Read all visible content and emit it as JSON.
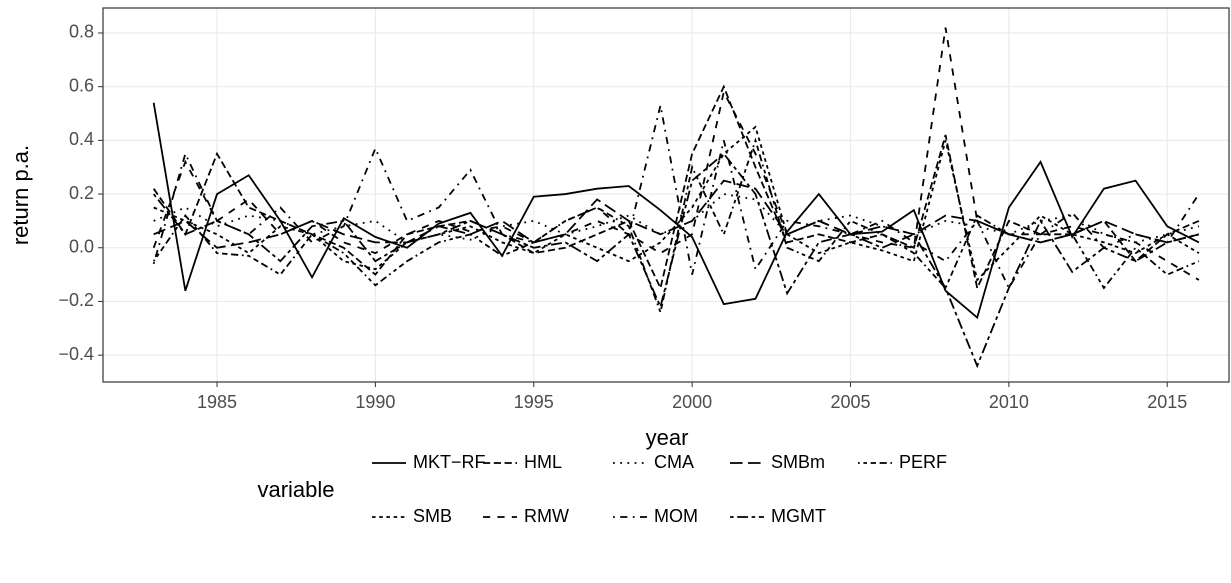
{
  "chart_data": {
    "type": "line",
    "x_label": "year",
    "y_label": "return p.a.",
    "legend_title": "variable",
    "x": [
      1983,
      1984,
      1985,
      1986,
      1987,
      1988,
      1989,
      1990,
      1991,
      1992,
      1993,
      1994,
      1995,
      1996,
      1997,
      1998,
      1999,
      2000,
      2001,
      2002,
      2003,
      2004,
      2005,
      2006,
      2007,
      2008,
      2009,
      2010,
      2011,
      2012,
      2013,
      2014,
      2015,
      2016
    ],
    "xlim": [
      1981.4,
      2016.95
    ],
    "xticks": [
      1985,
      1990,
      1995,
      2000,
      2005,
      2010,
      2015
    ],
    "ylim": [
      -0.5,
      0.893
    ],
    "yticks": [
      {
        "value": -0.4,
        "label": "−0.4"
      },
      {
        "value": -0.2,
        "label": "−0.2"
      },
      {
        "value": 0,
        "label": "0.0"
      },
      0.2,
      0.4,
      0.6,
      0.8
    ],
    "grid": true,
    "series": [
      {
        "name": "MKT−RF",
        "color": "#000000",
        "linetype": "solid",
        "values": [
          0.54,
          -0.16,
          0.2,
          0.27,
          0.1,
          -0.11,
          0.11,
          0.04,
          0.0,
          0.09,
          0.13,
          -0.03,
          0.19,
          0.2,
          0.22,
          0.23,
          0.14,
          0.04,
          -0.21,
          -0.19,
          0.06,
          0.2,
          0.05,
          0.06,
          0.14,
          -0.16,
          -0.26,
          0.15,
          0.32,
          0.04,
          0.22,
          0.25,
          0.08,
          0.02
        ]
      },
      {
        "name": "SMB",
        "color": "#000000",
        "linetype": "22",
        "values": [
          0.15,
          0.1,
          0.05,
          -0.02,
          0.08,
          0.05,
          -0.05,
          -0.08,
          0.02,
          0.05,
          0.08,
          0.02,
          -0.02,
          0.05,
          0.0,
          -0.05,
          0.02,
          0.15,
          0.35,
          0.45,
          0.05,
          -0.02,
          0.02,
          -0.01,
          -0.05,
          0.4,
          -0.12,
          0.0,
          0.12,
          0.05,
          0.02,
          -0.02,
          0.05,
          -0.02
        ]
      },
      {
        "name": "HML",
        "color": "#000000",
        "linetype": "42",
        "values": [
          0.22,
          0.05,
          0.35,
          0.15,
          0.1,
          0.05,
          0.0,
          -0.1,
          0.05,
          0.08,
          0.1,
          0.05,
          -0.02,
          0.0,
          0.05,
          0.1,
          -0.15,
          0.35,
          0.6,
          0.3,
          0.02,
          0.05,
          0.02,
          0.05,
          0.0,
          0.42,
          -0.15,
          0.1,
          0.05,
          0.05,
          0.1,
          -0.05,
          0.05,
          0.1
        ]
      },
      {
        "name": "RMW",
        "color": "#000000",
        "linetype": "44",
        "values": [
          0.0,
          0.32,
          0.1,
          0.18,
          0.05,
          0.1,
          0.02,
          -0.02,
          0.05,
          0.1,
          0.06,
          0.08,
          0.02,
          0.05,
          0.1,
          0.05,
          -0.02,
          0.05,
          0.58,
          0.35,
          0.05,
          0.1,
          0.05,
          0.02,
          0.0,
          0.82,
          0.1,
          0.05,
          0.05,
          0.08,
          0.05,
          0.02,
          -0.05,
          -0.12
        ]
      },
      {
        "name": "CMA",
        "color": "#000000",
        "linetype": "13",
        "values": [
          0.1,
          0.15,
          0.08,
          0.12,
          0.1,
          0.05,
          0.08,
          0.1,
          0.02,
          0.05,
          0.03,
          0.08,
          0.1,
          0.05,
          0.08,
          0.12,
          0.05,
          0.1,
          0.2,
          0.18,
          0.05,
          0.1,
          0.12,
          0.08,
          0.05,
          0.1,
          0.08,
          0.05,
          0.1,
          0.12,
          0.05,
          0.02,
          0.05,
          0.08
        ]
      },
      {
        "name": "MOM",
        "color": "#000000",
        "linetype": "1343",
        "values": [
          -0.06,
          0.35,
          0.1,
          0.05,
          0.15,
          0.02,
          0.08,
          0.37,
          0.1,
          0.15,
          0.29,
          0.05,
          0.02,
          0.1,
          0.15,
          0.05,
          0.53,
          -0.1,
          0.4,
          -0.08,
          0.1,
          0.08,
          0.05,
          0.1,
          0.02,
          -0.05,
          0.1,
          -0.15,
          0.05,
          0.13,
          0.0,
          0.05,
          0.02,
          0.2
        ]
      },
      {
        "name": "SMBm",
        "color": "#000000",
        "linetype": "73",
        "values": [
          0.05,
          0.1,
          0.0,
          0.02,
          0.05,
          0.1,
          0.05,
          0.02,
          0.02,
          0.08,
          0.05,
          0.1,
          0.02,
          0.05,
          0.18,
          0.1,
          0.05,
          0.1,
          0.25,
          0.22,
          0.05,
          0.1,
          0.05,
          0.08,
          0.05,
          0.12,
          0.1,
          0.05,
          0.02,
          0.05,
          0.1,
          0.05,
          0.02,
          0.05
        ]
      },
      {
        "name": "MGMT",
        "color": "#000000",
        "linetype": "2262",
        "values": [
          0.2,
          0.05,
          0.1,
          0.05,
          -0.05,
          0.08,
          0.1,
          -0.05,
          0.02,
          0.05,
          0.1,
          0.05,
          0.0,
          0.02,
          -0.05,
          0.05,
          -0.22,
          0.25,
          0.35,
          0.2,
          -0.17,
          0.02,
          0.05,
          0.0,
          0.05,
          -0.15,
          -0.44,
          -0.15,
          0.1,
          -0.09,
          0.0,
          -0.05,
          0.02,
          0.05
        ]
      },
      {
        "name": "PERF",
        "color": "#000000",
        "linetype": "12223242",
        "values": [
          -0.05,
          0.12,
          -0.02,
          -0.03,
          -0.1,
          0.05,
          -0.02,
          -0.14,
          -0.05,
          0.02,
          0.05,
          -0.03,
          0.02,
          0.1,
          0.15,
          0.08,
          -0.24,
          0.3,
          0.05,
          0.4,
          0.0,
          -0.05,
          0.1,
          0.05,
          -0.02,
          -0.15,
          0.12,
          0.05,
          0.02,
          0.05,
          -0.15,
          0.0,
          -0.1,
          -0.05
        ]
      }
    ]
  }
}
